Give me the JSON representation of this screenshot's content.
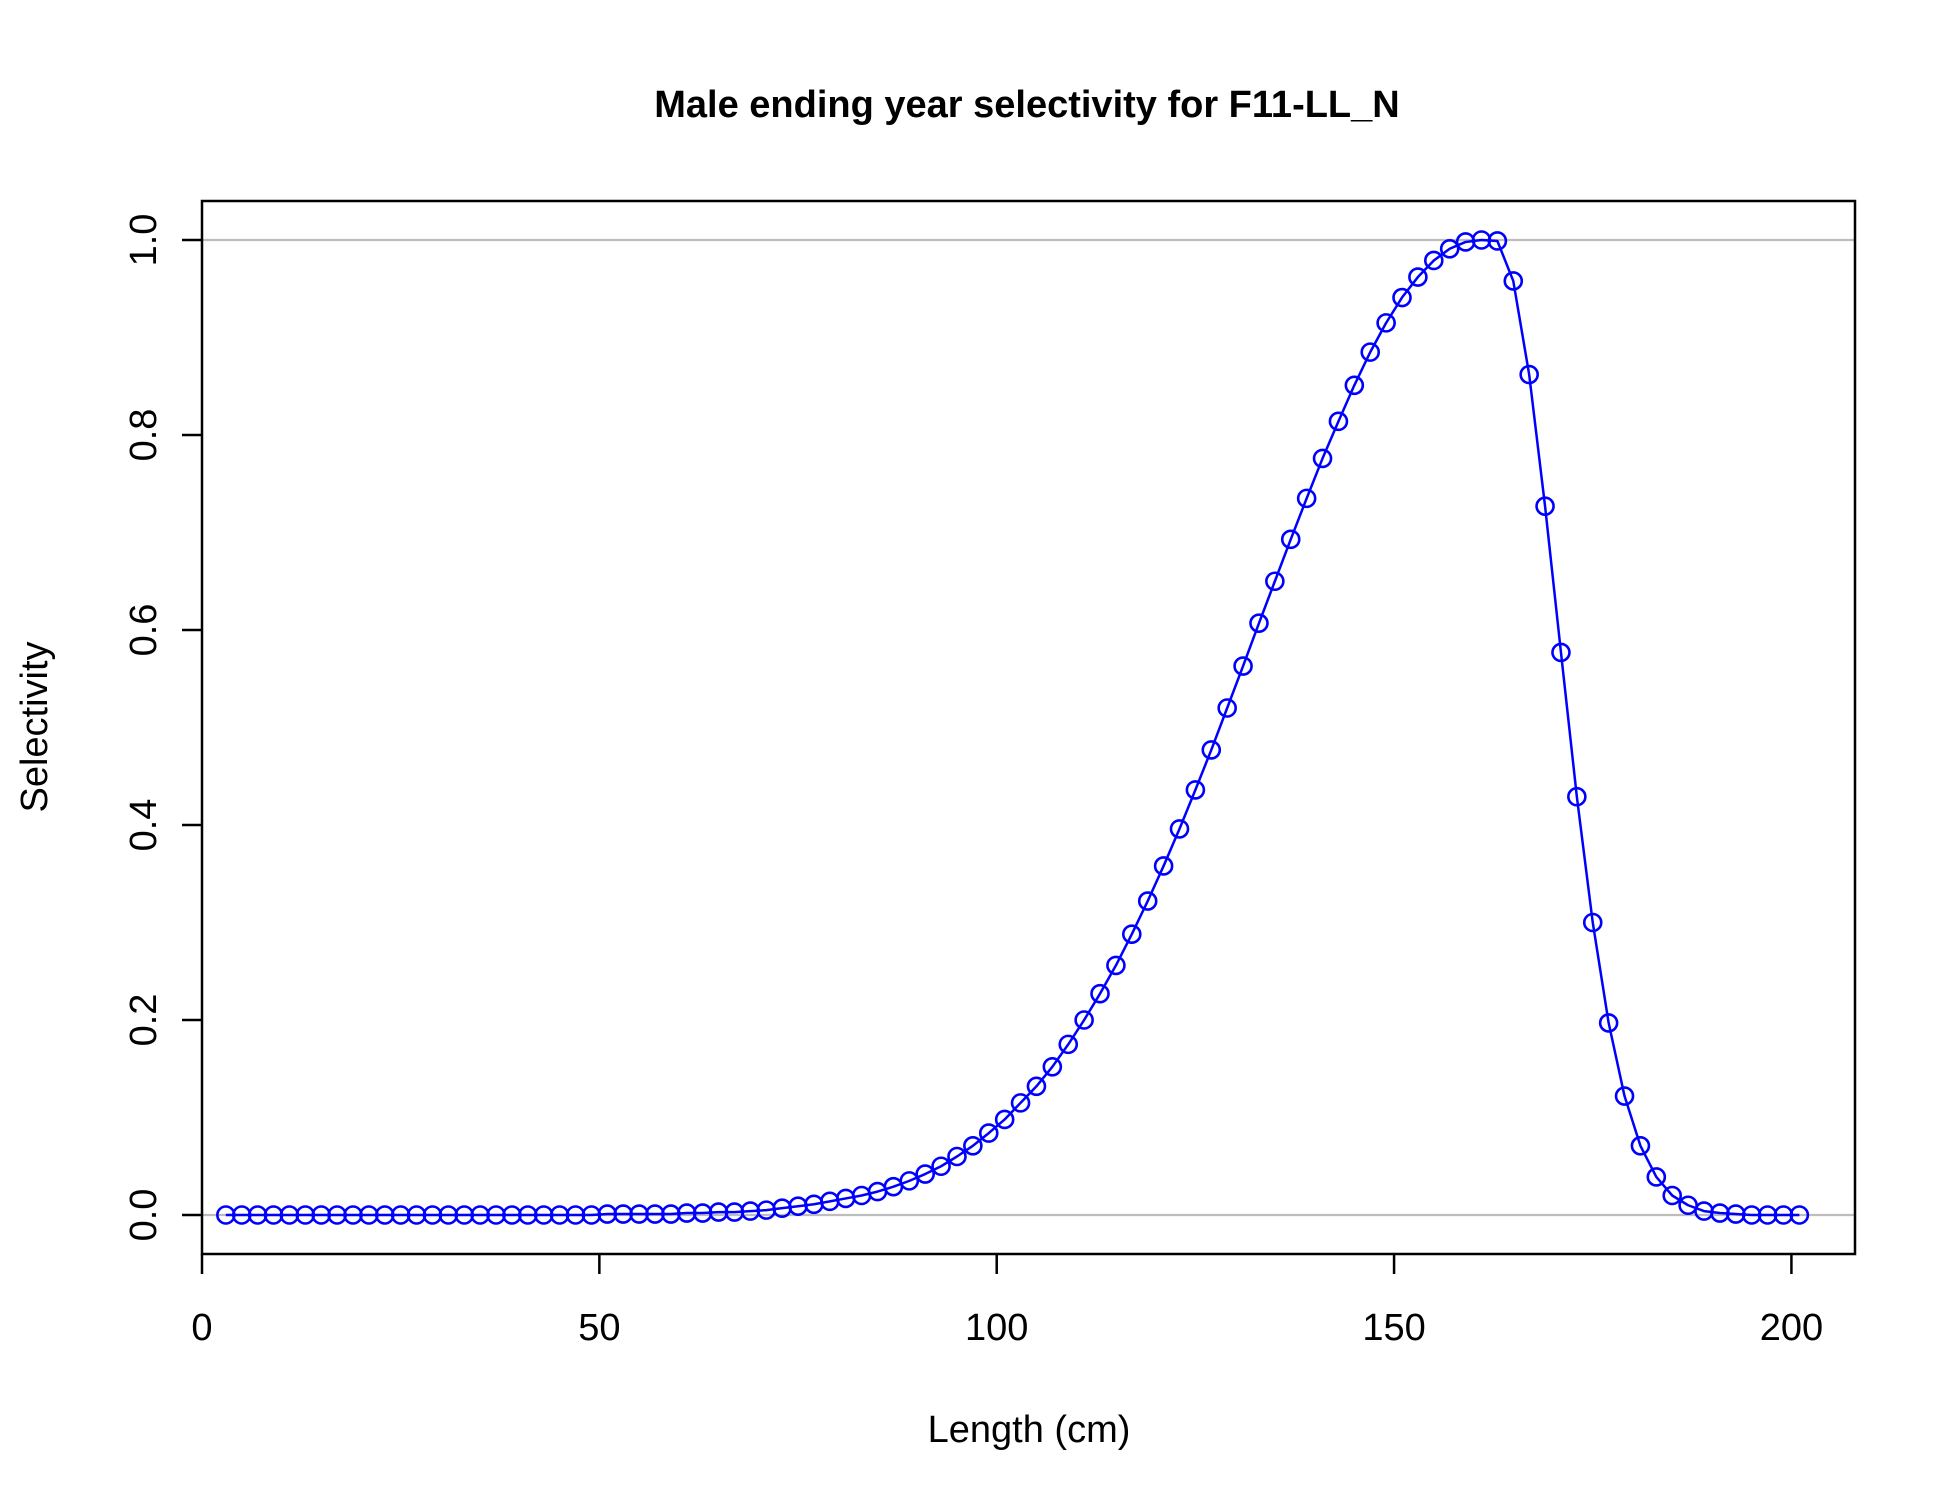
{
  "chart_data": {
    "type": "line",
    "title": "Male ending year selectivity for F11-LL_N",
    "xlabel": "Length (cm)",
    "ylabel": "Selectivity",
    "xlim": [
      0,
      208
    ],
    "ylim": [
      -0.04,
      1.04
    ],
    "xticks": [
      0,
      50,
      100,
      150,
      200
    ],
    "yticks": [
      0.0,
      0.2,
      0.4,
      0.6,
      0.8,
      1.0
    ],
    "xtick_labels": [
      "0",
      "50",
      "100",
      "150",
      "200"
    ],
    "ytick_labels": [
      "0.0",
      "0.2",
      "0.4",
      "0.6",
      "0.8",
      "1.0"
    ],
    "reference_lines_y": [
      0,
      1
    ],
    "grid": false,
    "markers": "open-circle",
    "series": [
      {
        "color": "#0000ff",
        "reference_color": "#bdbdbd",
        "x": [
          3,
          5,
          7,
          9,
          11,
          13,
          15,
          17,
          19,
          21,
          23,
          25,
          27,
          29,
          31,
          33,
          35,
          37,
          39,
          41,
          43,
          45,
          47,
          49,
          51,
          53,
          55,
          57,
          59,
          61,
          63,
          65,
          67,
          69,
          71,
          73,
          75,
          77,
          79,
          81,
          83,
          85,
          87,
          89,
          91,
          93,
          95,
          97,
          99,
          101,
          103,
          105,
          107,
          109,
          111,
          113,
          115,
          117,
          119,
          121,
          123,
          125,
          127,
          129,
          131,
          133,
          135,
          137,
          139,
          141,
          143,
          145,
          147,
          149,
          151,
          153,
          155,
          157,
          159,
          161,
          163,
          165,
          167,
          169,
          171,
          173,
          175,
          177,
          179,
          181,
          183,
          185,
          187,
          189,
          191,
          193,
          195,
          197,
          199,
          201
        ],
        "y": [
          0.0,
          0.0,
          0.0,
          0.0,
          0.0,
          0.0,
          0.0,
          0.0,
          0.0,
          0.0,
          0.0,
          0.0,
          0.0,
          0.0,
          0.0,
          0.0,
          0.0,
          0.0,
          0.0,
          0.0,
          0.0,
          0.0,
          0.0,
          0.0,
          0.001,
          0.001,
          0.001,
          0.001,
          0.001,
          0.002,
          0.002,
          0.003,
          0.003,
          0.004,
          0.005,
          0.007,
          0.009,
          0.011,
          0.014,
          0.017,
          0.02,
          0.024,
          0.029,
          0.035,
          0.042,
          0.05,
          0.06,
          0.071,
          0.084,
          0.098,
          0.115,
          0.132,
          0.152,
          0.175,
          0.2,
          0.227,
          0.256,
          0.288,
          0.322,
          0.358,
          0.396,
          0.436,
          0.477,
          0.52,
          0.563,
          0.607,
          0.65,
          0.693,
          0.735,
          0.776,
          0.814,
          0.851,
          0.885,
          0.915,
          0.941,
          0.962,
          0.979,
          0.991,
          0.998,
          1.0,
          0.999,
          0.958,
          0.862,
          0.727,
          0.577,
          0.429,
          0.3,
          0.197,
          0.122,
          0.071,
          0.039,
          0.02,
          0.01,
          0.004,
          0.002,
          0.001,
          0.0,
          0.0,
          0.0,
          0.0
        ]
      }
    ]
  }
}
